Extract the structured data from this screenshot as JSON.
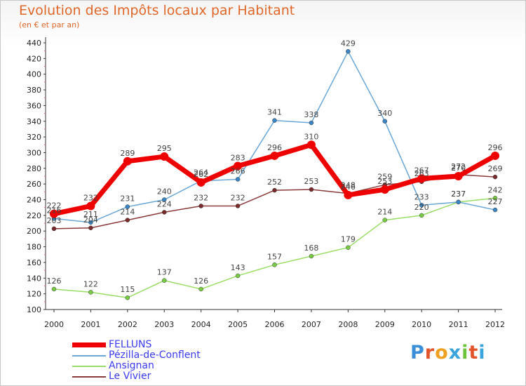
{
  "title": "Evolution des Impôts locaux par Habitant",
  "subtitle": "(en € et par an)",
  "logo": "Proxiti",
  "logo_colors": [
    "#3a8fd8",
    "#e4542a",
    "#f0a020",
    "#3aa5dc",
    "#6cc43a",
    "#e4542a",
    "#3aa5dc"
  ],
  "chart_data": {
    "type": "line",
    "title": "Evolution des Impôts locaux par Habitant",
    "subtitle": "(en € et par an)",
    "xlabel": "",
    "ylabel": "",
    "ylim": [
      100,
      440
    ],
    "yticks": [
      100,
      120,
      140,
      160,
      180,
      200,
      220,
      240,
      260,
      280,
      300,
      320,
      340,
      360,
      380,
      400,
      420,
      440
    ],
    "grid": false,
    "legend_position": "bottom-left",
    "x": [
      "2000",
      "2001",
      "2002",
      "2003",
      "2004",
      "2005",
      "2006",
      "2007",
      "2008",
      "2009",
      "2010",
      "2011",
      "2012"
    ],
    "series": [
      {
        "name": "Ansignan",
        "color": "#99dd66",
        "marker": "#77cc44",
        "emphasis": false,
        "values": [
          126,
          122,
          115,
          137,
          126,
          143,
          157,
          168,
          179,
          214,
          220,
          237,
          242
        ]
      },
      {
        "name": "Le Vivier",
        "color": "#8b3a3a",
        "marker": "#7a2a2a",
        "emphasis": false,
        "values": [
          203,
          204,
          214,
          224,
          232,
          232,
          252,
          253,
          248,
          259,
          263,
          272,
          269
        ]
      },
      {
        "name": "Pézilla-de-Conflent",
        "color": "#6aa6d6",
        "marker": "#3a86c6",
        "emphasis": false,
        "values": [
          216,
          211,
          231,
          240,
          264,
          266,
          341,
          338,
          429,
          340,
          233,
          237,
          227
        ]
      },
      {
        "name": "FELLUNS",
        "color": "#ee0000",
        "marker": "#ee0000",
        "emphasis": true,
        "values": [
          222,
          232,
          289,
          295,
          262,
          283,
          296,
          310,
          246,
          253,
          267,
          270,
          296
        ]
      }
    ],
    "legend_order": [
      "FELLUNS",
      "Pézilla-de-Conflent",
      "Ansignan",
      "Le Vivier"
    ]
  }
}
